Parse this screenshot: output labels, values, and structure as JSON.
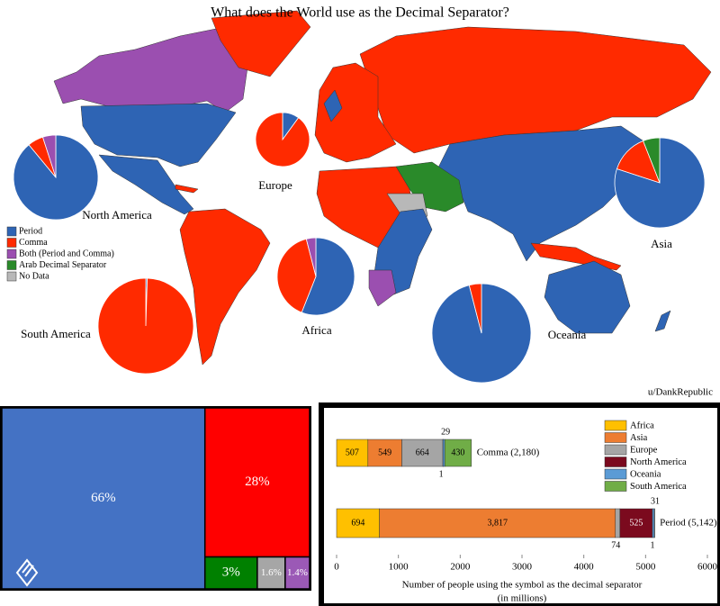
{
  "title": "What does the World use as the Decimal Separator?",
  "credit": "u/DankRepublic",
  "map_legend": [
    {
      "label": "Period",
      "color": "#2e64b4"
    },
    {
      "label": "Comma",
      "color": "#ff2a00"
    },
    {
      "label": "Both (Period and Comma)",
      "color": "#9b4fb0"
    },
    {
      "label": "Arab Decimal Separator",
      "color": "#2a8a2a"
    },
    {
      "label": "No Data",
      "color": "#b8b8b8"
    }
  ],
  "chart_data": [
    {
      "type": "pie",
      "title": "North America",
      "values": [
        89,
        6,
        5
      ],
      "colors": [
        "#2e64b4",
        "#ff2a00",
        "#9b4fb0"
      ]
    },
    {
      "type": "pie",
      "title": "Europe",
      "values": [
        10,
        90
      ],
      "colors": [
        "#2e64b4",
        "#ff2a00"
      ]
    },
    {
      "type": "pie",
      "title": "Asia",
      "values": [
        80,
        14,
        6
      ],
      "colors": [
        "#2e64b4",
        "#ff2a00",
        "#2a8a2a"
      ]
    },
    {
      "type": "pie",
      "title": "Africa",
      "values": [
        56,
        40,
        4
      ],
      "colors": [
        "#2e64b4",
        "#ff2a00",
        "#9b4fb0"
      ]
    },
    {
      "type": "pie",
      "title": "South America",
      "values": [
        0.5,
        99.5
      ],
      "colors": [
        "#2e64b4",
        "#ff2a00"
      ]
    },
    {
      "type": "pie",
      "title": "Oceania",
      "values": [
        96,
        4
      ],
      "colors": [
        "#2e64b4",
        "#ff2a00"
      ]
    },
    {
      "type": "treemap",
      "values": [
        66,
        28,
        3,
        1.6,
        1.4
      ],
      "value_labels": [
        "66%",
        "28%",
        "3%",
        "1.6%",
        "1.4%"
      ],
      "colors": [
        "#4472c4",
        "#ff0000",
        "#008000",
        "#a6a6a6",
        "#9b59b6"
      ]
    },
    {
      "type": "stacked-bar",
      "categories": [
        "Comma (2,180)",
        "Period (5,142)"
      ],
      "series": [
        {
          "name": "Africa",
          "color": "#ffc000",
          "values": [
            507,
            694
          ]
        },
        {
          "name": "Asia",
          "color": "#ed7d31",
          "values": [
            549,
            3817
          ],
          "value_labels": [
            "549",
            "3,817"
          ]
        },
        {
          "name": "Europe",
          "color": "#a5a5a5",
          "values": [
            664,
            74
          ]
        },
        {
          "name": "North America",
          "color": "#7b0a1e",
          "values": [
            1,
            525
          ]
        },
        {
          "name": "Oceania",
          "color": "#5b9bd5",
          "values": [
            29,
            31
          ]
        },
        {
          "name": "South America",
          "color": "#70ad47",
          "values": [
            430,
            1
          ]
        }
      ],
      "xlim": [
        0,
        6000
      ],
      "xticks": [
        0,
        1000,
        2000,
        3000,
        4000,
        5000,
        6000
      ],
      "xlabel": "Number of people using the symbol as the decimal separator",
      "xlabel2": "(in millions)"
    }
  ]
}
